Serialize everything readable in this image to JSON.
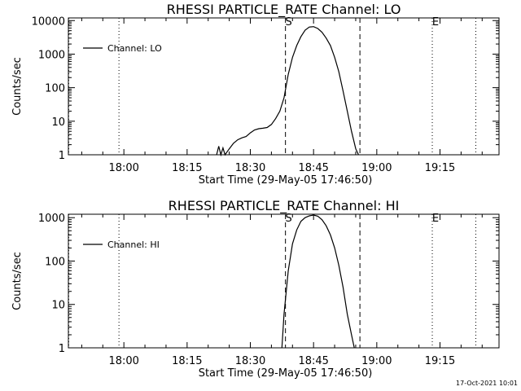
{
  "chart_data": [
    {
      "type": "line",
      "title": "RHESSI PARTICLE_RATE Channel: LO",
      "xlabel": "Start Time (29-May-05 17:46:50)",
      "ylabel": "Counts/sec",
      "yscale": "log",
      "xlim": [
        "17:46:50",
        "19:29:00"
      ],
      "ylim": [
        1,
        12000
      ],
      "x_ticks": [
        "18:00",
        "18:15",
        "18:30",
        "18:45",
        "19:00",
        "19:15"
      ],
      "y_ticks": [
        "1",
        "10",
        "100",
        "1000",
        "10000"
      ],
      "legend": {
        "position": "top-left",
        "entries": [
          "Channel: LO"
        ]
      },
      "markers": [
        {
          "label": "",
          "time": "17:46:55",
          "style": "dotted"
        },
        {
          "label": "",
          "time": "17:58:50",
          "style": "dotted"
        },
        {
          "label": "S",
          "time": "18:38:20",
          "style": "dashed"
        },
        {
          "label": "",
          "time": "18:56:00",
          "style": "dashed"
        },
        {
          "label": "E",
          "time": "19:13:10",
          "style": "dotted"
        },
        {
          "label": "",
          "time": "19:23:30",
          "style": "dotted"
        }
      ],
      "series": [
        {
          "x": [
            "18:22:00",
            "18:22:30",
            "18:23:00",
            "18:23:30",
            "18:24:00",
            "18:25:00",
            "18:26:00",
            "18:27:00",
            "18:28:00",
            "18:29:00",
            "18:30:00",
            "18:31:00",
            "18:32:00",
            "18:33:00",
            "18:34:00",
            "18:35:00",
            "18:36:00",
            "18:37:00",
            "18:38:00",
            "18:39:00",
            "18:40:00",
            "18:41:00",
            "18:42:00",
            "18:43:00",
            "18:44:00",
            "18:45:00",
            "18:46:00",
            "18:47:00",
            "18:48:00",
            "18:49:00",
            "18:50:00",
            "18:51:00",
            "18:52:00",
            "18:53:00",
            "18:54:00",
            "18:55:00",
            "18:55:40"
          ],
          "y": [
            1,
            1.8,
            1,
            1.6,
            1,
            1.5,
            2.2,
            2.8,
            3.2,
            3.5,
            4.5,
            5.5,
            6,
            6.2,
            6.5,
            8,
            12,
            20,
            50,
            250,
            800,
            1800,
            3300,
            5200,
            6400,
            6600,
            5800,
            4500,
            3000,
            1800,
            800,
            300,
            80,
            20,
            5,
            1.5,
            1
          ]
        }
      ]
    },
    {
      "type": "line",
      "title": "RHESSI PARTICLE_RATE Channel: HI",
      "xlabel": "Start Time (29-May-05 17:46:50)",
      "ylabel": "Counts/sec",
      "yscale": "log",
      "xlim": [
        "17:46:50",
        "19:29:00"
      ],
      "ylim": [
        1,
        1200
      ],
      "x_ticks": [
        "18:00",
        "18:15",
        "18:30",
        "18:45",
        "19:00",
        "19:15"
      ],
      "y_ticks": [
        "1",
        "10",
        "100",
        "1000"
      ],
      "legend": {
        "position": "top-left",
        "entries": [
          "Channel: HI"
        ]
      },
      "markers": [
        {
          "label": "",
          "time": "17:46:55",
          "style": "dotted"
        },
        {
          "label": "",
          "time": "17:58:50",
          "style": "dotted"
        },
        {
          "label": "S",
          "time": "18:38:20",
          "style": "dashed"
        },
        {
          "label": "",
          "time": "18:56:00",
          "style": "dashed"
        },
        {
          "label": "E",
          "time": "19:13:10",
          "style": "dotted"
        },
        {
          "label": "",
          "time": "19:23:30",
          "style": "dotted"
        }
      ],
      "series": [
        {
          "x": [
            "18:37:30",
            "18:38:00",
            "18:39:00",
            "18:40:00",
            "18:41:00",
            "18:42:00",
            "18:43:00",
            "18:44:00",
            "18:45:00",
            "18:46:00",
            "18:47:00",
            "18:48:00",
            "18:49:00",
            "18:50:00",
            "18:51:00",
            "18:52:00",
            "18:53:00",
            "18:54:00",
            "18:54:40"
          ],
          "y": [
            1,
            6,
            60,
            250,
            520,
            820,
            1000,
            1100,
            1150,
            1080,
            900,
            650,
            400,
            200,
            80,
            25,
            6,
            2,
            1
          ]
        }
      ]
    }
  ],
  "footer": {
    "timestamp": "17-Oct-2021 10:01"
  }
}
